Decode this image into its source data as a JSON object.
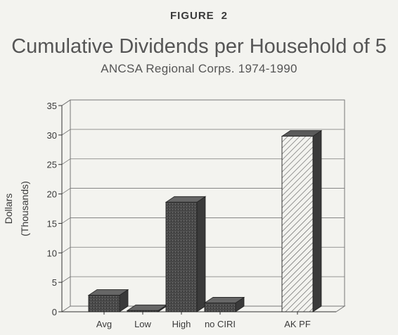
{
  "figure": {
    "label": "FIGURE",
    "number": "2"
  },
  "chart_data": {
    "type": "bar",
    "title": "Cumulative Dividends per Household of 5",
    "subtitle": "ANCSA Regional Corps. 1974-1990",
    "ylabel": "Dollars",
    "ylabel_units": "(Thousands)",
    "categories": [
      "Avg",
      "Low",
      "High",
      "no CIRI",
      "AK PF"
    ],
    "values": [
      2.8,
      0.2,
      18.6,
      1.5,
      29.8
    ],
    "ylim": [
      0,
      35
    ],
    "yticks": [
      0,
      5,
      10,
      15,
      20,
      25,
      30,
      35
    ],
    "grid": true,
    "style": "3d",
    "colors": {
      "dark_bar": "#4a4a4a",
      "hatched_bar": "#f3f3ef",
      "grid": "#777777"
    },
    "hatched_categories": [
      "AK PF"
    ]
  }
}
